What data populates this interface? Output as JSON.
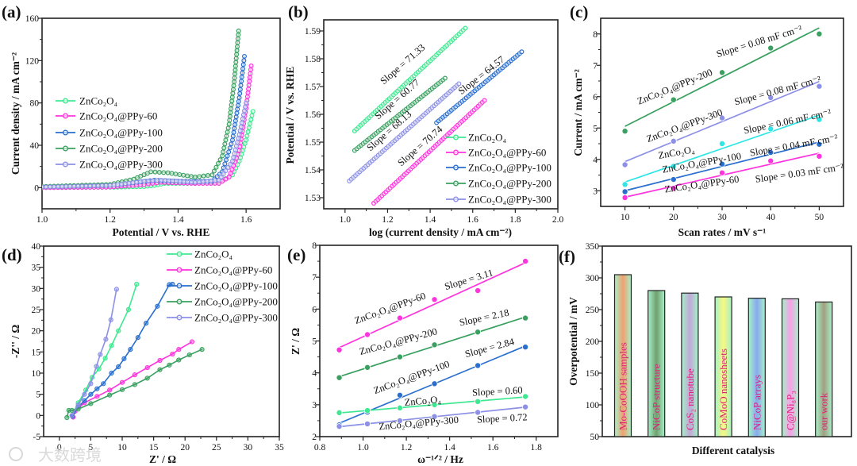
{
  "watermark": "大数跨境",
  "chart_data": [
    {
      "panel_label": "(a)",
      "type": "line",
      "xlabel": "Potential / V vs. RHE",
      "ylabel": "Current density / mA cm⁻²",
      "xlim": [
        1.0,
        1.7
      ],
      "ylim": [
        -20,
        160
      ],
      "xticks": [
        "1.0",
        "1.2",
        "1.4",
        "1.6"
      ],
      "yticks": [
        "0",
        "40",
        "80",
        "120",
        "160"
      ],
      "legend": "middle-left",
      "series": [
        {
          "name": "ZnCo₂O₄",
          "color": "#3ee890",
          "points": [
            [
              1.0,
              0
            ],
            [
              1.2,
              0.3
            ],
            [
              1.3,
              1
            ],
            [
              1.33,
              2
            ],
            [
              1.36,
              4
            ],
            [
              1.45,
              4
            ],
            [
              1.52,
              5
            ],
            [
              1.56,
              12
            ],
            [
              1.58,
              25
            ],
            [
              1.6,
              45
            ],
            [
              1.62,
              72
            ]
          ]
        },
        {
          "name": "ZnCo₂O₄@PPy-60",
          "color": "#ff33dd",
          "points": [
            [
              1.0,
              0
            ],
            [
              1.2,
              0.5
            ],
            [
              1.3,
              3
            ],
            [
              1.35,
              5
            ],
            [
              1.45,
              4
            ],
            [
              1.52,
              4
            ],
            [
              1.55,
              10
            ],
            [
              1.58,
              35
            ],
            [
              1.6,
              75
            ],
            [
              1.615,
              115
            ]
          ]
        },
        {
          "name": "ZnCo₂O₄@PPy-100",
          "color": "#2a6fce",
          "points": [
            [
              1.0,
              1
            ],
            [
              1.2,
              2
            ],
            [
              1.28,
              5
            ],
            [
              1.33,
              7
            ],
            [
              1.4,
              6
            ],
            [
              1.5,
              6
            ],
            [
              1.53,
              15
            ],
            [
              1.56,
              45
            ],
            [
              1.58,
              85
            ],
            [
              1.595,
              124
            ]
          ]
        },
        {
          "name": "ZnCo₂O₄@PPy-200",
          "color": "#3aa060",
          "points": [
            [
              1.0,
              1
            ],
            [
              1.2,
              3
            ],
            [
              1.27,
              8
            ],
            [
              1.32,
              15
            ],
            [
              1.37,
              14
            ],
            [
              1.45,
              10
            ],
            [
              1.5,
              12
            ],
            [
              1.53,
              30
            ],
            [
              1.55,
              60
            ],
            [
              1.565,
              100
            ],
            [
              1.578,
              148
            ]
          ]
        },
        {
          "name": "ZnCo₂O₄@PPy-300",
          "color": "#8c90e6",
          "points": [
            [
              1.0,
              0.5
            ],
            [
              1.2,
              2
            ],
            [
              1.3,
              6
            ],
            [
              1.35,
              7
            ],
            [
              1.45,
              5
            ],
            [
              1.52,
              7
            ],
            [
              1.56,
              25
            ],
            [
              1.58,
              50
            ],
            [
              1.6,
              80
            ]
          ]
        }
      ]
    },
    {
      "panel_label": "(b)",
      "type": "line",
      "xlabel": "log (current density / mA cm⁻²)",
      "ylabel": "Potential / V vs. RHE",
      "xlim": [
        0.9,
        2.0
      ],
      "ylim": [
        1.526,
        1.594
      ],
      "xticks": [
        "1.0",
        "1.2",
        "1.4",
        "1.6",
        "1.8",
        "2.0"
      ],
      "yticks": [
        "1.53",
        "1.54",
        "1.55",
        "1.56",
        "1.57",
        "1.58",
        "1.59"
      ],
      "legend": "bottom-right",
      "series": [
        {
          "name": "ZnCo₂O₄",
          "color": "#3ee890",
          "slope_label": "Slope = 71.33",
          "points": [
            [
              1.045,
              1.554
            ],
            [
              1.565,
              1.591
            ]
          ]
        },
        {
          "name": "ZnCo₂O₄@PPy-60",
          "color": "#ff33dd",
          "slope_label": "Slope = 70.74",
          "points": [
            [
              1.135,
              1.528
            ],
            [
              1.655,
              1.565
            ]
          ]
        },
        {
          "name": "ZnCo₂O₄@PPy-100",
          "color": "#2a6fce",
          "slope_label": "Slope = 64.57",
          "points": [
            [
              1.43,
              1.557
            ],
            [
              1.83,
              1.5825
            ]
          ]
        },
        {
          "name": "ZnCo₂O₄@PPy-200",
          "color": "#3aa060",
          "slope_label": "Slope = 60.77",
          "points": [
            [
              1.045,
              1.547
            ],
            [
              1.47,
              1.573
            ]
          ]
        },
        {
          "name": "ZnCo₂O₄@PPy-300",
          "color": "#8c90e6",
          "slope_label": "Slope = 68.13",
          "points": [
            [
              1.02,
              1.536
            ],
            [
              1.535,
              1.571
            ]
          ]
        }
      ]
    },
    {
      "panel_label": "(c)",
      "type": "scatter",
      "xlabel": "Scan rates / mV s⁻¹",
      "ylabel": "Current / mA cm⁻²",
      "xlim": [
        5,
        55
      ],
      "ylim": [
        2.5,
        8.5
      ],
      "xticks": [
        "10",
        "20",
        "30",
        "40",
        "50"
      ],
      "yticks": [
        "3",
        "4",
        "5",
        "6",
        "7",
        "8"
      ],
      "x": [
        10,
        20,
        30,
        40,
        50
      ],
      "series": [
        {
          "name": "ZnCo₂O₄@PPy-200",
          "color": "#3aa060",
          "slope_label": "Slope = 0.08 mF cm⁻²",
          "values": [
            4.9,
            5.9,
            6.77,
            7.55,
            8.0
          ]
        },
        {
          "name": "ZnCo₂O₄@PPy-300",
          "color": "#8c90e6",
          "slope_label": "Slope = 0.08 mF cm⁻²",
          "values": [
            3.83,
            4.58,
            5.32,
            5.97,
            6.33
          ]
        },
        {
          "name": "ZnCo₂O₄",
          "color": "#2ee6e6",
          "slope_label": "Slope = 0.06 mF cm⁻²",
          "values": [
            3.2,
            3.78,
            4.5,
            4.97,
            5.27
          ]
        },
        {
          "name": "ZnCo₂O₄@PPy-100",
          "color": "#2a6fce",
          "slope_label": "Slope = 0.04 mF cm⁻²",
          "values": [
            2.97,
            3.36,
            3.85,
            4.22,
            4.48
          ]
        },
        {
          "name": "ZnCo₂O₄@PPy-60",
          "color": "#ff33dd",
          "slope_label": "Slope = 0.03 mF cm⁻²",
          "values": [
            2.78,
            3.08,
            3.57,
            3.95,
            4.1
          ]
        }
      ]
    },
    {
      "panel_label": "(d)",
      "type": "line",
      "xlabel": "Z' / Ω",
      "ylabel": "-Z'' / Ω",
      "xlim": [
        -2.5,
        35
      ],
      "ylim": [
        -5,
        40
      ],
      "xticks": [
        "0",
        "5",
        "10",
        "15",
        "20",
        "25",
        "30",
        "35"
      ],
      "yticks": [
        "-5",
        "0",
        "5",
        "10",
        "15",
        "20",
        "25",
        "30",
        "35",
        "40"
      ],
      "legend": "top-right",
      "series": [
        {
          "name": "ZnCo₂O₄",
          "color": "#3ee890",
          "points": [
            [
              2,
              0
            ],
            [
              3,
              3
            ],
            [
              4.2,
              6
            ],
            [
              5.2,
              9
            ],
            [
              6.3,
              11
            ],
            [
              7.3,
              13.5
            ],
            [
              8.3,
              16.5
            ],
            [
              9.4,
              20
            ],
            [
              11,
              25
            ],
            [
              12.3,
              31
            ]
          ]
        },
        {
          "name": "ZnCo₂O₄@PPy-60",
          "color": "#ff33dd",
          "points": [
            [
              2.2,
              -0.4
            ],
            [
              2.5,
              1
            ],
            [
              4,
              3
            ],
            [
              6,
              4.5
            ],
            [
              8,
              6
            ],
            [
              10,
              7.8
            ],
            [
              12,
              9.6
            ],
            [
              14,
              11.3
            ],
            [
              16,
              13
            ],
            [
              18,
              14.5
            ],
            [
              19,
              15.6
            ],
            [
              21.1,
              17.4
            ]
          ]
        },
        {
          "name": "ZnCo₂O₄@PPy-100",
          "color": "#2a6fce",
          "points": [
            [
              2.1,
              -0.2
            ],
            [
              3,
              2
            ],
            [
              4,
              3.5
            ],
            [
              5,
              5
            ],
            [
              6,
              6.3
            ],
            [
              7,
              7.5
            ],
            [
              8.3,
              10
            ],
            [
              9.4,
              11.5
            ],
            [
              10.3,
              13.4
            ],
            [
              11.3,
              15.6
            ],
            [
              12.5,
              18.4
            ],
            [
              13.8,
              21.8
            ],
            [
              15.6,
              25.8
            ],
            [
              17.5,
              30.9
            ],
            [
              18,
              31
            ]
          ]
        },
        {
          "name": "ZnCo₂O₄@PPy-200",
          "color": "#3aa060",
          "points": [
            [
              1.2,
              -0.5
            ],
            [
              1.5,
              1.2
            ],
            [
              2,
              1.2
            ],
            [
              3,
              1.5
            ],
            [
              5,
              2.8
            ],
            [
              8,
              4.8
            ],
            [
              10,
              6.1
            ],
            [
              12,
              7.3
            ],
            [
              14,
              8.8
            ],
            [
              16,
              10.8
            ],
            [
              17.5,
              11.9
            ],
            [
              19,
              13.1
            ],
            [
              20.7,
              14.3
            ],
            [
              22.7,
              15.6
            ]
          ]
        },
        {
          "name": "ZnCo₂O₄@PPy-300",
          "color": "#8c90e6",
          "points": [
            [
              2,
              0
            ],
            [
              3,
              2.5
            ],
            [
              4,
              5
            ],
            [
              5,
              7.5
            ],
            [
              5.9,
              11.6
            ],
            [
              6.5,
              14.4
            ],
            [
              7.4,
              18
            ],
            [
              8.2,
              22.6
            ],
            [
              9.1,
              29.8
            ]
          ]
        }
      ]
    },
    {
      "panel_label": "(e)",
      "type": "scatter",
      "xlabel": "ω⁻¹ᐟ² / Hz",
      "ylabel": "Z' / Ω",
      "xlim": [
        0.8,
        1.9
      ],
      "ylim": [
        2,
        8
      ],
      "xticks": [
        "0.8",
        "1.0",
        "1.2",
        "1.4",
        "1.6",
        "1.8"
      ],
      "yticks": [
        "2",
        "3",
        "4",
        "5",
        "6",
        "7",
        "8"
      ],
      "x": [
        0.89,
        1.02,
        1.17,
        1.33,
        1.53,
        1.75
      ],
      "series": [
        {
          "name": "ZnCo₂O₄@PPy-60",
          "color": "#ff33dd",
          "slope_label": "Slope = 3.11",
          "values": [
            4.72,
            5.2,
            5.72,
            6.3,
            6.58,
            7.5
          ]
        },
        {
          "name": "ZnCo₂O₄@PPy-200",
          "color": "#3aa060",
          "slope_label": "Slope = 2.18",
          "values": [
            3.85,
            4.17,
            4.5,
            4.88,
            5.28,
            5.72
          ]
        },
        {
          "name": "ZnCo₂O₄@PPy-100",
          "color": "#2a6fce",
          "slope_label": "Slope = 2.84",
          "values": [
            2.37,
            2.77,
            3.3,
            3.66,
            4.23,
            4.81
          ]
        },
        {
          "name": "ZnCo₂O₄",
          "color": "#3ee890",
          "slope_label": "Slope = 0.60",
          "values": [
            2.75,
            2.82,
            2.9,
            3.0,
            3.1,
            3.26
          ]
        },
        {
          "name": "ZnCo₂O₄@PPy-300",
          "color": "#8c90e6",
          "slope_label": "Slope = 0.72",
          "values": [
            2.32,
            2.4,
            2.5,
            2.63,
            2.76,
            2.93
          ]
        }
      ]
    },
    {
      "panel_label": "(f)",
      "type": "bar",
      "xlabel": "Different catalysis",
      "ylabel": "Overpotential / mV",
      "ylim": [
        50,
        350
      ],
      "yticks": [
        "50",
        "100",
        "150",
        "200",
        "250",
        "300",
        "350"
      ],
      "categories": [
        "Mo-CoOOH samples",
        "NiCoP structure",
        "CoS₂ nanotube",
        "CoMoO nanosheets",
        "NiCoP arrays",
        "C@Ni₈P₃",
        "our work"
      ],
      "values": [
        305,
        280,
        276,
        270,
        268,
        267,
        262
      ],
      "bar_edge_color": "#a8f0c8",
      "bar_mid_colors": [
        "#f0a070",
        "#6fa070",
        "#c0a8d8",
        "#f8f880",
        "#88aaf0",
        "#f8a0e8",
        "#a0a080"
      ]
    }
  ]
}
